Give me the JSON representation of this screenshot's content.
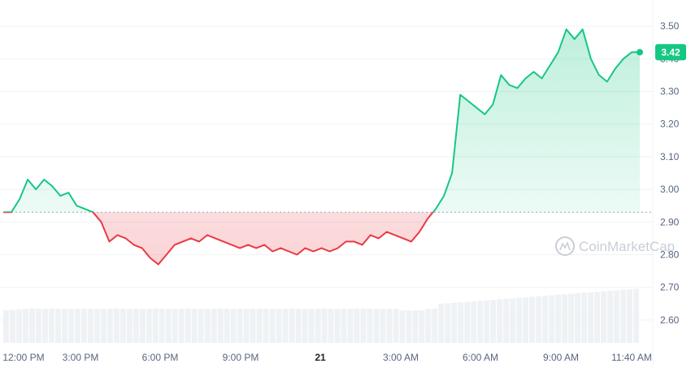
{
  "chart_data": {
    "type": "line",
    "title": "",
    "xlabel": "",
    "ylabel": "",
    "ylim": [
      2.53,
      3.58
    ],
    "yticks": [
      "3.50",
      "3.40",
      "3.30",
      "3.20",
      "3.10",
      "3.00",
      "2.90",
      "2.80",
      "2.70",
      "2.60"
    ],
    "xticks": [
      "12:00 PM",
      "3:00 PM",
      "6:00 PM",
      "9:00 PM",
      "21",
      "3:00 AM",
      "6:00 AM",
      "9:00 AM",
      "11:40 AM"
    ],
    "baseline": 2.93,
    "current_price": "3.42",
    "grid": true,
    "colors": {
      "up": "#16c784",
      "down": "#ea3943",
      "volume": "#eff2f5"
    },
    "series": [
      {
        "x": [
          "11:50 AM",
          "12:10 PM",
          "12:25 PM",
          "12:40 PM",
          "12:55 PM",
          "1:10 PM",
          "1:30 PM",
          "1:50 PM",
          "2:10 PM",
          "2:30 PM",
          "2:50 PM",
          "3:10 PM",
          "3:30 PM",
          "3:45 PM",
          "4:00 PM",
          "4:15 PM",
          "4:30 PM",
          "4:45 PM",
          "5:00 PM",
          "5:15 PM",
          "5:30 PM",
          "5:45 PM",
          "6:00 PM",
          "6:15 PM",
          "6:30 PM",
          "6:45 PM",
          "7:00 PM",
          "7:20 PM",
          "7:40 PM",
          "8:00 PM",
          "8:20 PM",
          "8:40 PM",
          "9:00 PM",
          "9:20 PM",
          "9:40 PM",
          "10:00 PM",
          "10:20 PM",
          "10:40 PM",
          "11:00 PM",
          "11:20 PM",
          "11:40 PM",
          "12:00 AM",
          "12:20 AM",
          "12:40 AM",
          "1:00 AM",
          "1:20 AM",
          "1:40 AM",
          "2:00 AM",
          "2:20 AM",
          "2:40 AM",
          "3:00 AM",
          "3:15 AM",
          "3:30 AM",
          "3:45 AM",
          "4:00 AM",
          "4:15 AM",
          "4:25 AM",
          "4:40 AM",
          "5:00 AM",
          "5:20 AM",
          "5:40 AM",
          "6:00 AM",
          "6:20 AM",
          "6:40 AM",
          "7:00 AM",
          "7:20 AM",
          "7:40 AM",
          "8:00 AM",
          "8:20 AM",
          "8:40 AM",
          "9:00 AM",
          "9:20 AM",
          "9:40 AM",
          "10:00 AM",
          "10:20 AM",
          "10:40 AM",
          "11:00 AM",
          "11:20 AM",
          "11:40 AM"
        ],
        "y": [
          2.93,
          2.93,
          2.97,
          3.03,
          3.0,
          3.03,
          3.01,
          2.98,
          2.99,
          2.95,
          2.94,
          2.93,
          2.9,
          2.84,
          2.86,
          2.85,
          2.83,
          2.82,
          2.79,
          2.77,
          2.8,
          2.83,
          2.84,
          2.85,
          2.84,
          2.86,
          2.85,
          2.84,
          2.83,
          2.82,
          2.83,
          2.82,
          2.83,
          2.81,
          2.82,
          2.81,
          2.8,
          2.82,
          2.81,
          2.82,
          2.81,
          2.82,
          2.84,
          2.84,
          2.83,
          2.86,
          2.85,
          2.87,
          2.86,
          2.85,
          2.84,
          2.87,
          2.91,
          2.94,
          2.98,
          3.05,
          3.29,
          3.27,
          3.25,
          3.23,
          3.26,
          3.35,
          3.32,
          3.31,
          3.34,
          3.36,
          3.34,
          3.38,
          3.42,
          3.49,
          3.46,
          3.49,
          3.4,
          3.35,
          3.33,
          3.37,
          3.4,
          3.42,
          3.42
        ]
      }
    ]
  }
}
